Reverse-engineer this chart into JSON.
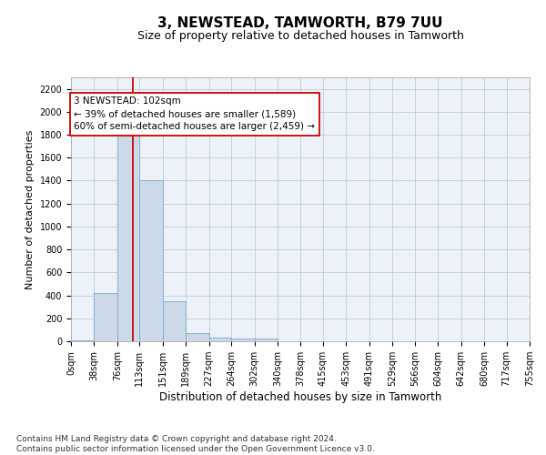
{
  "title": "3, NEWSTEAD, TAMWORTH, B79 7UU",
  "subtitle": "Size of property relative to detached houses in Tamworth",
  "xlabel": "Distribution of detached houses by size in Tamworth",
  "ylabel": "Number of detached properties",
  "bar_color": "#ccd9e8",
  "bar_edge_color": "#7aaad0",
  "grid_color": "#c0ccd8",
  "background_color": "#edf2f9",
  "vline_color": "#cc0000",
  "vline_x": 102,
  "annotation_text": "3 NEWSTEAD: 102sqm\n← 39% of detached houses are smaller (1,589)\n60% of semi-detached houses are larger (2,459) →",
  "annotation_box_color": "#ffffff",
  "annotation_border_color": "#cc0000",
  "bin_edges": [
    0,
    38,
    76,
    113,
    151,
    189,
    227,
    264,
    302,
    340,
    378,
    415,
    453,
    491,
    529,
    566,
    604,
    642,
    680,
    717,
    755
  ],
  "bar_heights": [
    10,
    420,
    1800,
    1400,
    350,
    75,
    30,
    20,
    20,
    0,
    0,
    0,
    0,
    0,
    0,
    0,
    0,
    0,
    0,
    0
  ],
  "ylim": [
    0,
    2300
  ],
  "yticks": [
    0,
    200,
    400,
    600,
    800,
    1000,
    1200,
    1400,
    1600,
    1800,
    2000,
    2200
  ],
  "footer_text": "Contains HM Land Registry data © Crown copyright and database right 2024.\nContains public sector information licensed under the Open Government Licence v3.0.",
  "title_fontsize": 11,
  "subtitle_fontsize": 9,
  "xlabel_fontsize": 8.5,
  "ylabel_fontsize": 8,
  "tick_fontsize": 7,
  "annotation_fontsize": 7.5,
  "footer_fontsize": 6.5
}
